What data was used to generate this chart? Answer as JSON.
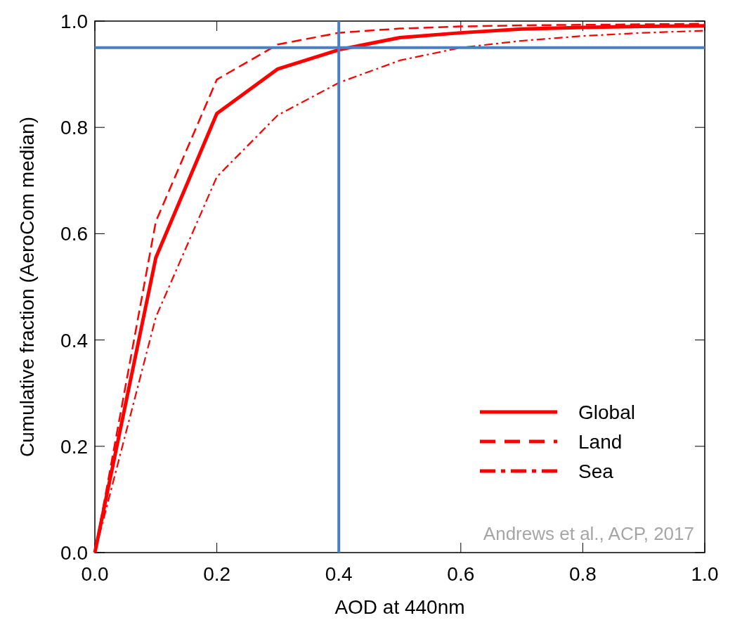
{
  "chart_data": {
    "type": "line",
    "xlabel": "AOD at 440nm",
    "ylabel": "Cumulative fraction (AeroCom median)",
    "x": [
      0,
      0.1,
      0.2,
      0.3,
      0.4,
      0.5,
      0.6,
      0.7,
      0.8,
      0.9,
      1.0
    ],
    "series": [
      {
        "name": "Global",
        "color": "#ff0000",
        "line_style": "solid",
        "values": [
          0,
          0.555,
          0.826,
          0.91,
          0.946,
          0.969,
          0.978,
          0.985,
          0.988,
          0.99,
          0.991
        ]
      },
      {
        "name": "Land",
        "color": "#ff0000",
        "line_style": "dashed",
        "values": [
          0,
          0.623,
          0.89,
          0.956,
          0.978,
          0.986,
          0.99,
          0.992,
          0.993,
          0.994,
          0.995
        ]
      },
      {
        "name": "Sea",
        "color": "#ff0000",
        "line_style": "dashdot",
        "values": [
          0,
          0.443,
          0.707,
          0.823,
          0.884,
          0.926,
          0.95,
          0.963,
          0.972,
          0.978,
          0.982
        ]
      }
    ],
    "xlim": [
      0,
      1
    ],
    "ylim": [
      0,
      1
    ],
    "xticks": [
      {
        "value": 0,
        "label": "0.0"
      },
      0.2,
      0.4,
      0.6,
      0.8,
      {
        "value": 1,
        "label": "1.0"
      }
    ],
    "yticks": [
      {
        "value": 0,
        "label": "0.0"
      },
      0.2,
      0.4,
      0.6,
      0.8,
      {
        "value": 1,
        "label": "1.0"
      }
    ],
    "ref_lines": [
      {
        "axis": "y",
        "value": 0.95,
        "color": "#4a7fc1"
      },
      {
        "axis": "x",
        "value": 0.4,
        "color": "#4a7fc1"
      }
    ],
    "annotations": [
      "Andrews et al., ACP, 2017"
    ],
    "legend": "bottom right",
    "marker": "none"
  }
}
